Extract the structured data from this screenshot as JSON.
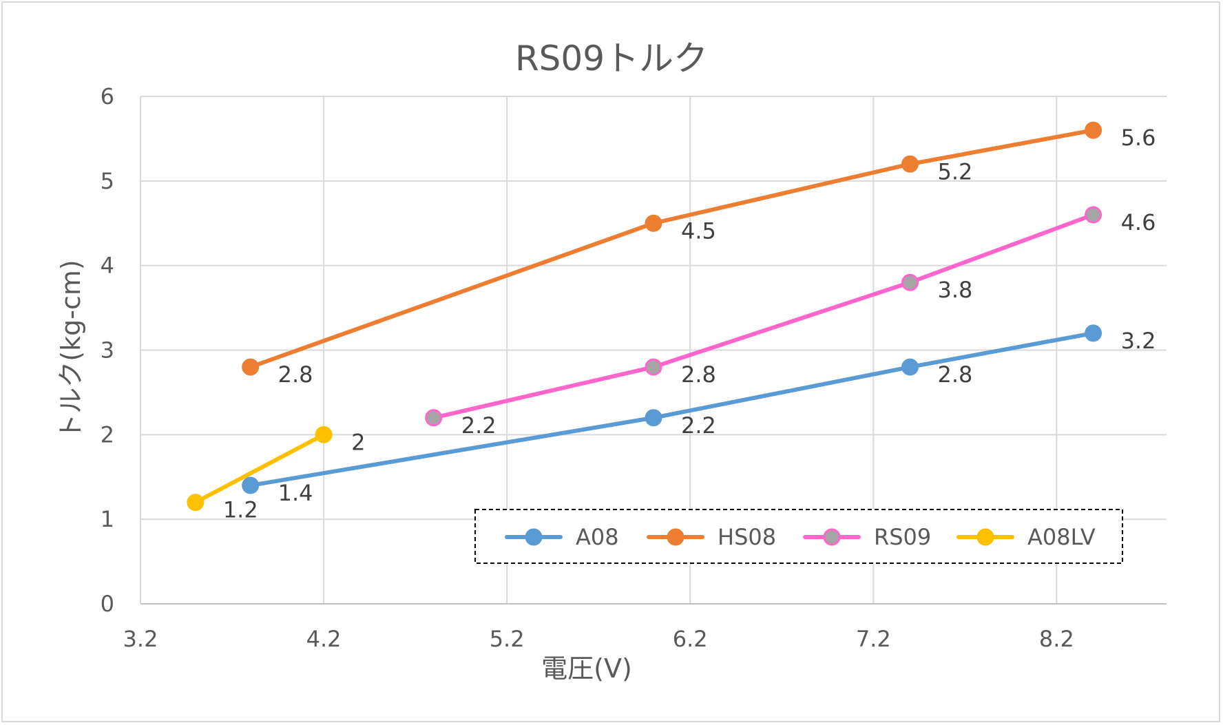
{
  "chart_data": {
    "type": "line",
    "title": "RS09トルク",
    "xlabel": "電圧(V)",
    "ylabel": "トルク(kg-cm)",
    "xlim": [
      3.2,
      8.8
    ],
    "ylim": [
      0,
      6
    ],
    "xticks": [
      "3.2",
      "4.2",
      "5.2",
      "6.2",
      "7.2",
      "8.2"
    ],
    "yticks": [
      "0",
      "1",
      "2",
      "3",
      "4",
      "5",
      "6"
    ],
    "grid": true,
    "legend_position": "bottom-right",
    "series": [
      {
        "name": "A08",
        "color": "#5b9bd5",
        "marker_fill": "#5b9bd5",
        "x": [
          3.8,
          6.0,
          7.4,
          8.4
        ],
        "y": [
          1.4,
          2.2,
          2.8,
          3.2
        ],
        "labels": [
          "1.4",
          "2.2",
          "2.8",
          "3.2"
        ]
      },
      {
        "name": "HS08",
        "color": "#ed7d31",
        "marker_fill": "#ed7d31",
        "x": [
          3.8,
          6.0,
          7.4,
          8.4
        ],
        "y": [
          2.8,
          4.5,
          5.2,
          5.6
        ],
        "labels": [
          "2.8",
          "4.5",
          "5.2",
          "5.6"
        ]
      },
      {
        "name": "RS09",
        "color": "#ff66cc",
        "marker_fill": "#a5a5a5",
        "x": [
          4.8,
          6.0,
          7.4,
          8.4
        ],
        "y": [
          2.2,
          2.8,
          3.8,
          4.6
        ],
        "labels": [
          "2.2",
          "2.8",
          "3.8",
          "4.6"
        ]
      },
      {
        "name": "A08LV",
        "color": "#ffc000",
        "marker_fill": "#ffc000",
        "x": [
          3.5,
          4.2
        ],
        "y": [
          1.2,
          2.0
        ],
        "labels": [
          "1.2",
          "2"
        ]
      }
    ]
  }
}
